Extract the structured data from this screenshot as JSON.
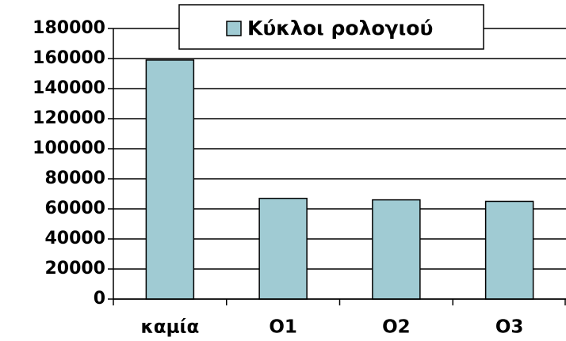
{
  "chart_data": {
    "type": "bar",
    "categories": [
      "καμία",
      "O1",
      "O2",
      "O3"
    ],
    "series": [
      {
        "name": "Κύκλοι ρολογιού",
        "color": "#a0cbd3",
        "values": [
          159000,
          67000,
          66000,
          65000
        ]
      }
    ],
    "ylim": [
      0,
      180000
    ],
    "yticks": [
      0,
      20000,
      40000,
      60000,
      80000,
      100000,
      120000,
      140000,
      160000,
      180000
    ],
    "grid": true,
    "legend": "top"
  }
}
